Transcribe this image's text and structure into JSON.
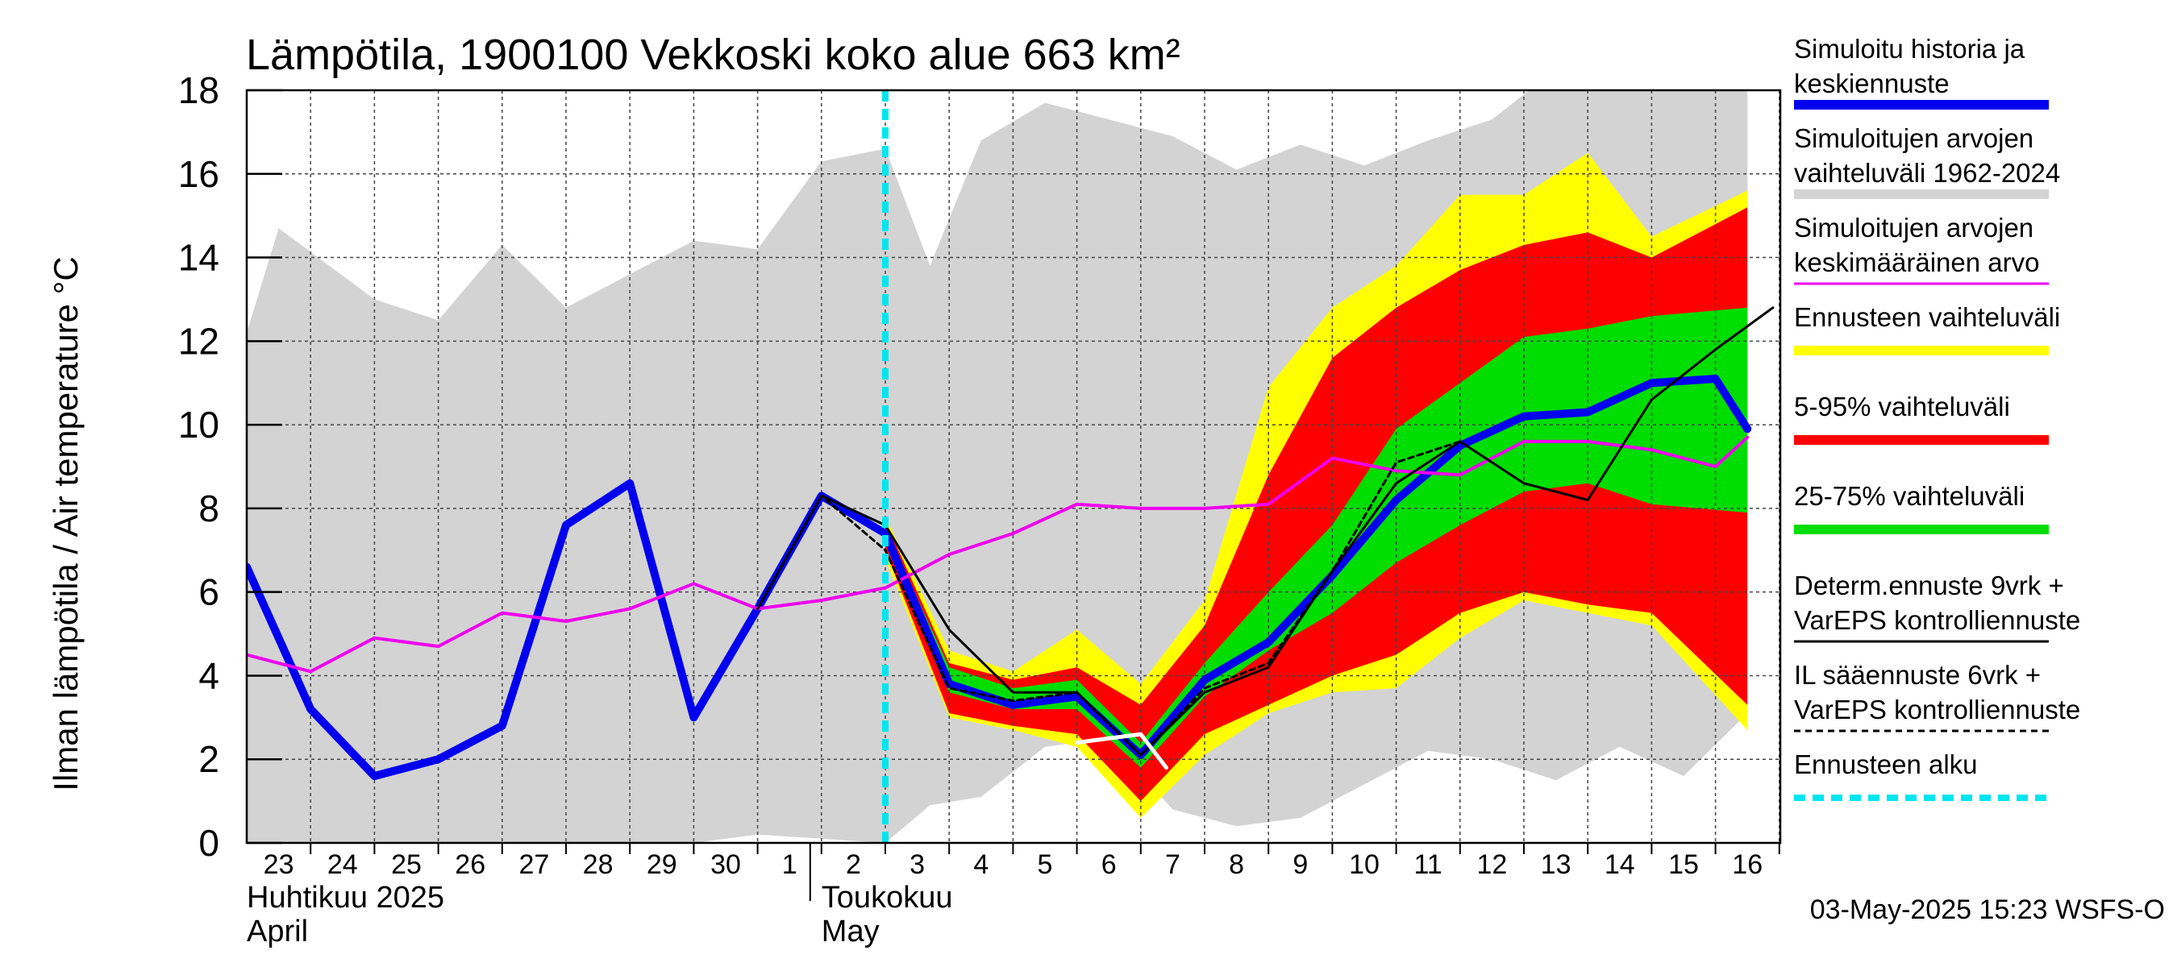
{
  "chart_data": {
    "type": "line",
    "title": "Lämpötila, 1900100 Vekkoski koko alue 663 km²",
    "ylabel": "Ilman lämpötila / Air temperature   °C",
    "ylim": [
      0,
      18
    ],
    "yticks": [
      0,
      2,
      4,
      6,
      8,
      10,
      12,
      14,
      16,
      18
    ],
    "x_labels": [
      "23",
      "24",
      "25",
      "26",
      "27",
      "28",
      "29",
      "30",
      "1",
      "2",
      "3",
      "4",
      "5",
      "6",
      "7",
      "8",
      "9",
      "10",
      "11",
      "12",
      "13",
      "14",
      "15",
      "16"
    ],
    "month_labels": [
      {
        "label": "Huhtikuu  2025",
        "sub": "April",
        "at": 0
      },
      {
        "label": "Toukokuu",
        "sub": "May",
        "at": 9
      }
    ],
    "forecast_start": 10,
    "historical_range": {
      "x": [
        -0.2,
        0.5,
        2,
        3,
        4,
        5,
        6,
        7,
        8,
        9,
        10,
        10.7,
        11.5,
        12.5,
        13.5,
        14.5,
        15.5,
        16.5,
        17.5,
        18.5,
        19.5,
        20.5,
        21.5,
        22.5,
        23.5
      ],
      "upper": [
        11.2,
        14.7,
        13.0,
        12.5,
        14.3,
        12.8,
        13.6,
        14.4,
        14.2,
        16.3,
        16.6,
        13.8,
        16.8,
        17.7,
        17.3,
        16.9,
        16.1,
        16.7,
        16.2,
        16.8,
        17.3,
        18.5,
        18.5,
        18.5,
        18.5
      ],
      "lower": [
        0,
        0,
        0,
        0,
        0,
        0,
        0,
        0,
        0.2,
        0.1,
        0,
        0.9,
        1.1,
        2.3,
        2.5,
        0.8,
        0.4,
        0.6,
        1.4,
        2.2,
        2.0,
        1.5,
        2.3,
        1.6,
        3.1
      ]
    },
    "forecast_x": [
      10,
      11,
      12,
      13,
      14,
      15,
      16,
      17,
      18,
      19,
      20,
      21,
      22,
      23.5
    ],
    "bands": [
      {
        "name": "Ennusteen vaihteluväli",
        "color": "#ffff00",
        "upper": [
          7.8,
          4.6,
          4.1,
          5.1,
          3.8,
          5.8,
          10.9,
          12.8,
          13.8,
          15.5,
          15.5,
          16.5,
          14.5,
          15.6
        ],
        "lower": [
          6.8,
          3.0,
          2.7,
          2.3,
          0.6,
          2.1,
          3.1,
          3.6,
          3.7,
          4.9,
          5.8,
          5.5,
          5.2,
          2.7
        ]
      },
      {
        "name": "5-95% vaihteluväli",
        "color": "#ff0000",
        "upper": [
          7.7,
          4.3,
          3.9,
          4.2,
          3.3,
          5.2,
          8.8,
          11.6,
          12.8,
          13.7,
          14.3,
          14.6,
          14.0,
          15.2
        ],
        "lower": [
          7.0,
          3.1,
          2.8,
          2.6,
          1.0,
          2.6,
          3.3,
          4.0,
          4.5,
          5.5,
          6.0,
          5.7,
          5.5,
          3.3
        ]
      },
      {
        "name": "25-75% vaihteluväli",
        "color": "#00dd00",
        "upper": [
          7.5,
          4.2,
          3.7,
          3.9,
          2.4,
          4.3,
          6.0,
          7.6,
          9.9,
          11.0,
          12.1,
          12.3,
          12.6,
          12.8
        ],
        "lower": [
          7.2,
          3.6,
          3.2,
          3.2,
          1.8,
          3.5,
          4.6,
          5.5,
          6.7,
          7.6,
          8.4,
          8.6,
          8.1,
          7.9
        ]
      }
    ],
    "series": [
      {
        "name": "Simuloitu historia ja keskiennuste",
        "color": "#0000ee",
        "x": [
          0,
          1,
          2,
          3,
          4,
          5,
          6,
          7,
          8,
          9,
          10,
          11,
          12,
          13,
          14,
          15,
          16,
          17,
          18,
          19,
          20,
          21,
          22,
          23,
          23.5
        ],
        "values": [
          6.6,
          3.2,
          1.6,
          2.0,
          2.8,
          7.6,
          8.6,
          3.0,
          5.6,
          8.3,
          7.4,
          3.8,
          3.3,
          3.5,
          2.1,
          3.9,
          4.8,
          6.4,
          8.2,
          9.5,
          10.2,
          10.3,
          11.0,
          11.1,
          9.9
        ]
      },
      {
        "name": "Simuloitujen arvojen keskimääräinen arvo",
        "color": "#ee00ee",
        "x": [
          0,
          1,
          2,
          3,
          4,
          5,
          6,
          7,
          8,
          9,
          10,
          11,
          12,
          13,
          14,
          15,
          16,
          17,
          18,
          19,
          20,
          21,
          22,
          23,
          23.5
        ],
        "values": [
          4.5,
          4.1,
          4.9,
          4.7,
          5.5,
          5.3,
          5.6,
          6.2,
          5.6,
          5.8,
          6.1,
          6.9,
          7.4,
          8.1,
          8.0,
          8.0,
          8.1,
          9.2,
          8.9,
          8.8,
          9.6,
          9.6,
          9.4,
          9.0,
          9.7
        ]
      },
      {
        "name": "Determ.ennuste 9vrk + VarEPS kontrolliennuste",
        "color": "#000000",
        "x": [
          8,
          9,
          10,
          11,
          12,
          13,
          14,
          15,
          16,
          17,
          18,
          19,
          20,
          21,
          22,
          23,
          23.9
        ],
        "values": [
          5.6,
          8.3,
          7.6,
          5.1,
          3.6,
          3.6,
          2.1,
          3.6,
          4.2,
          6.5,
          8.6,
          9.6,
          8.6,
          8.2,
          10.6,
          11.8,
          12.8
        ]
      },
      {
        "name": "IL sääennuste 6vrk + VarEPS kontrolliennuste",
        "color": "#000000",
        "dashed": true,
        "x": [
          8,
          9,
          10,
          11,
          12,
          13,
          14,
          15,
          16,
          17,
          18,
          19
        ],
        "values": [
          5.6,
          8.3,
          7.0,
          3.7,
          3.4,
          3.6,
          2.1,
          3.7,
          4.3,
          6.5,
          9.1,
          9.6
        ]
      },
      {
        "name": "Hist. low trace",
        "color": "#ffffff",
        "legend": false,
        "x": [
          13,
          14,
          14.4
        ],
        "values": [
          2.4,
          2.6,
          1.8
        ]
      }
    ],
    "legend": [
      {
        "label1": "Simuloitu historia ja",
        "label2": "keskiennuste",
        "color": "#0000ee",
        "style": "thick"
      },
      {
        "label1": "Simuloitujen arvojen",
        "label2": "vaihteluväli 1962-2024",
        "color": "#d3d3d3",
        "style": "thick"
      },
      {
        "label1": "Simuloitujen arvojen",
        "label2": "keskimääräinen arvo",
        "color": "#ee00ee",
        "style": "thin"
      },
      {
        "label1": "Ennusteen vaihteluväli",
        "label2": "",
        "color": "#ffff00",
        "style": "thick"
      },
      {
        "label1": "5-95% vaihteluväli",
        "label2": "",
        "color": "#ff0000",
        "style": "thick"
      },
      {
        "label1": "25-75% vaihteluväli",
        "label2": "",
        "color": "#00dd00",
        "style": "thick"
      },
      {
        "label1": "Determ.ennuste 9vrk +",
        "label2": "VarEPS kontrolliennuste",
        "color": "#000000",
        "style": "thin"
      },
      {
        "label1": "IL sääennuste 6vrk  +",
        "label2": "  VarEPS kontrolliennuste",
        "color": "#000000",
        "style": "dashed"
      },
      {
        "label1": "Ennusteen alku",
        "label2": "",
        "color": "#00e5ee",
        "style": "dashed-thick"
      }
    ]
  },
  "footer": "03-May-2025 15:23 WSFS-O",
  "colors": {
    "historical_range": "#d3d3d3",
    "forecast_start": "#00e5ee",
    "grid": "#444444"
  }
}
